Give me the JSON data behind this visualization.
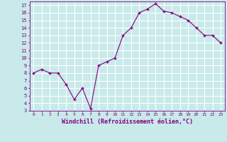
{
  "x": [
    0,
    1,
    2,
    3,
    4,
    5,
    6,
    7,
    8,
    9,
    10,
    11,
    12,
    13,
    14,
    15,
    16,
    17,
    18,
    19,
    20,
    21,
    22,
    23
  ],
  "y": [
    8.0,
    8.5,
    8.0,
    8.0,
    6.5,
    4.5,
    6.0,
    3.3,
    9.0,
    9.5,
    10.0,
    13.0,
    14.0,
    16.0,
    16.5,
    17.2,
    16.2,
    16.0,
    15.5,
    15.0,
    14.0,
    13.0,
    13.0,
    12.0
  ],
  "line_color": "#800080",
  "marker": "+",
  "bg_color": "#c8eaea",
  "grid_color": "#ffffff",
  "xlabel": "Windchill (Refroidissement éolien,°C)",
  "xlabel_color": "#800080",
  "tick_color": "#800080",
  "ylabel_ticks": [
    3,
    4,
    5,
    6,
    7,
    8,
    9,
    10,
    11,
    12,
    13,
    14,
    15,
    16,
    17
  ],
  "xlim": [
    -0.5,
    23.5
  ],
  "ylim": [
    3,
    17.5
  ],
  "markersize": 3,
  "linewidth": 0.8
}
